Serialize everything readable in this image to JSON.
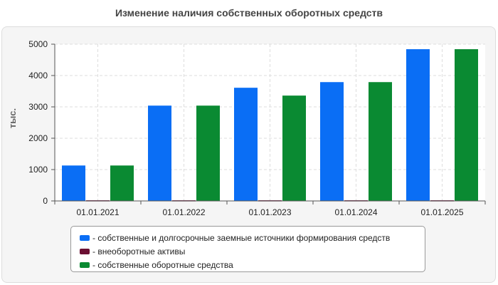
{
  "chart_data": {
    "type": "bar",
    "title": "Изменение наличия собственных оборотных средств",
    "ylabel": "тыс.",
    "xlabel": "",
    "categories": [
      "01.01.2021",
      "01.01.2022",
      "01.01.2023",
      "01.01.2024",
      "01.01.2025"
    ],
    "ylim": [
      0,
      5000
    ],
    "yticks": [
      0,
      1000,
      2000,
      3000,
      4000,
      5000
    ],
    "grid": true,
    "legend_position": "bottom",
    "series": [
      {
        "name": "собственные и долгосрочные заемные источники формирования средств",
        "color": "#0a6ef5",
        "values": [
          1130,
          3040,
          3610,
          3790,
          4840
        ]
      },
      {
        "name": "внеоборотные активы",
        "color": "#6b0f33",
        "values": [
          20,
          20,
          20,
          20,
          20
        ]
      },
      {
        "name": "собственные оборотные средства",
        "color": "#0a8a32",
        "values": [
          1130,
          3040,
          3360,
          3790,
          4840
        ]
      }
    ]
  }
}
